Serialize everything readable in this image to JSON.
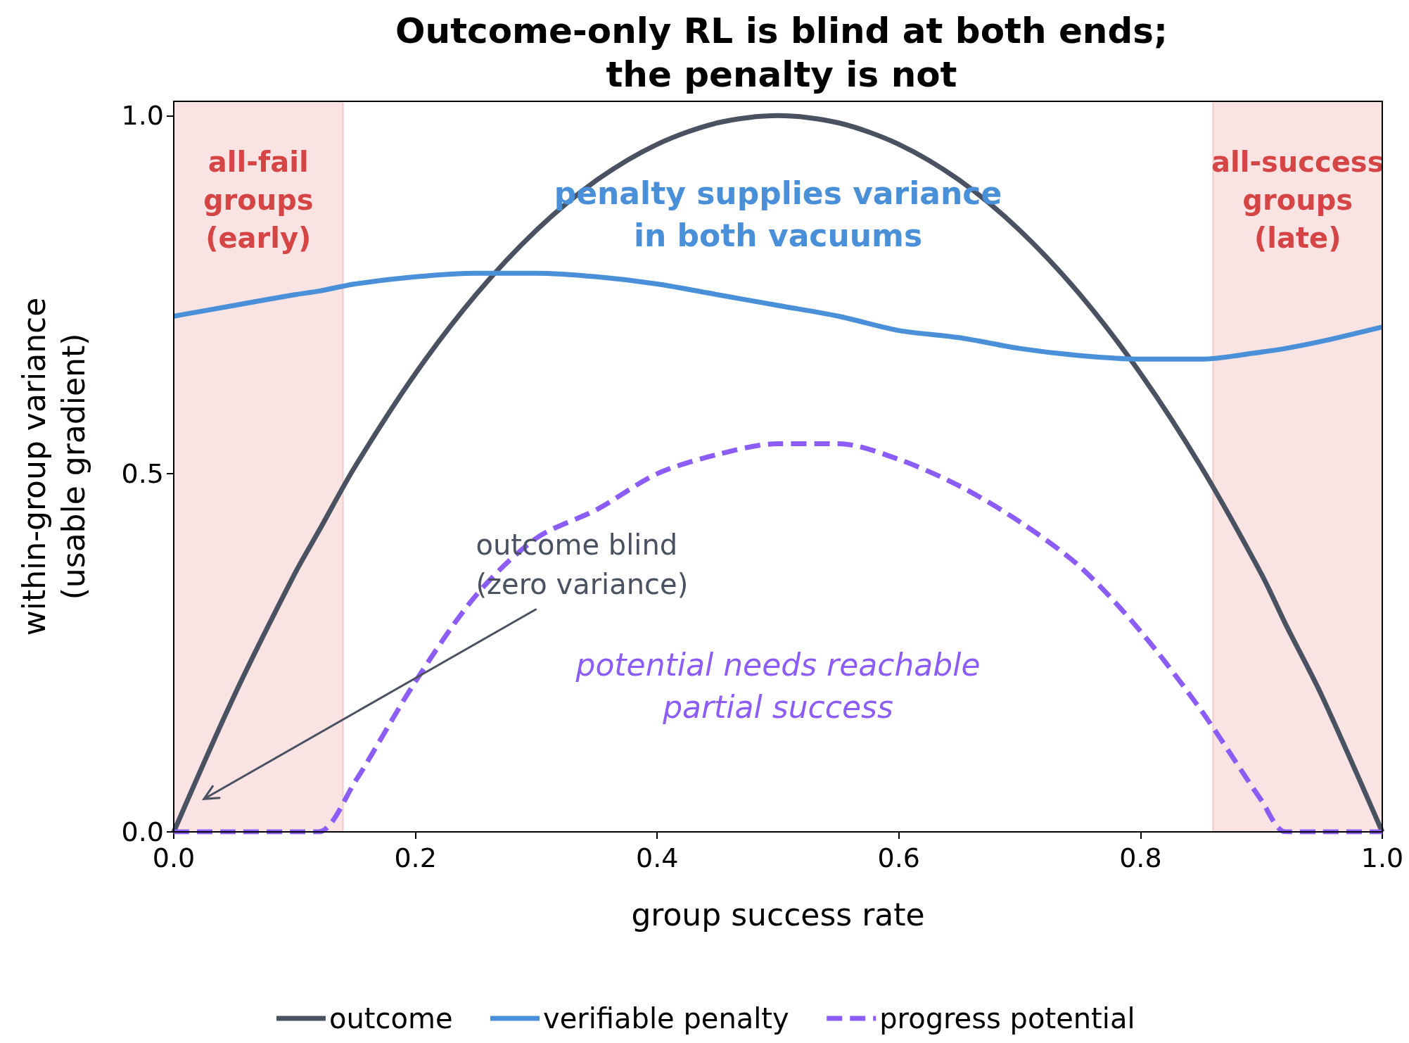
{
  "chart_data": {
    "type": "line",
    "title": "Outcome-only RL is blind at both ends;\nthe penalty is not",
    "xlabel": "group success rate",
    "ylabel": "within-group variance\n(usable gradient)",
    "x": [
      0,
      0.05,
      0.1,
      0.12,
      0.15,
      0.2,
      0.25,
      0.3,
      0.35,
      0.4,
      0.45,
      0.5,
      0.55,
      0.6,
      0.65,
      0.7,
      0.75,
      0.8,
      0.85,
      0.9,
      0.92,
      0.95,
      1.0
    ],
    "series": [
      {
        "name": "outcome",
        "color": "#4a5160",
        "line_style": "solid",
        "values": [
          0,
          0.19,
          0.36,
          0.42,
          0.51,
          0.64,
          0.75,
          0.84,
          0.91,
          0.96,
          0.99,
          1.0,
          0.99,
          0.96,
          0.91,
          0.84,
          0.75,
          0.64,
          0.51,
          0.36,
          0.29,
          0.19,
          0
        ]
      },
      {
        "name": "verifiable penalty",
        "color": "#4a90d9",
        "line_style": "solid",
        "values": [
          0.72,
          0.735,
          0.75,
          0.755,
          0.765,
          0.775,
          0.78,
          0.78,
          0.775,
          0.765,
          0.75,
          0.735,
          0.72,
          0.7,
          0.69,
          0.675,
          0.665,
          0.66,
          0.66,
          0.67,
          0.675,
          0.685,
          0.705
        ]
      },
      {
        "name": "progress potential",
        "color": "#8b5cf6",
        "line_style": "dashed",
        "values": [
          0,
          0,
          0,
          0,
          0.07,
          0.21,
          0.33,
          0.41,
          0.45,
          0.5,
          0.527,
          0.542,
          0.542,
          0.52,
          0.483,
          0.433,
          0.37,
          0.28,
          0.17,
          0.044,
          0,
          0,
          0
        ]
      }
    ],
    "xlim": [
      0,
      1
    ],
    "xticks": [
      {
        "value": 0,
        "label": "0.0"
      },
      0.2,
      0.4,
      0.6,
      0.8,
      {
        "value": 1,
        "label": "1.0"
      }
    ],
    "ylim": [
      0,
      1.02
    ],
    "yticks": [
      {
        "value": 0,
        "label": "0.0"
      },
      0.5,
      {
        "value": 1,
        "label": "1.0"
      }
    ],
    "bands": [
      {
        "axis": "x",
        "from": 0,
        "to": 0.14,
        "label": "all-fail\ngroups\n(early)",
        "color": "#f9e3e3"
      },
      {
        "axis": "x",
        "from": 0.86,
        "to": 1.0,
        "label": "all-success\ngroups\n(late)",
        "color": "#f9e3e3"
      }
    ],
    "annotations": [
      "outcome blind\n(zero variance)",
      "penalty supplies variance\nin both vacuums",
      "potential needs reachable\npartial success"
    ],
    "grid": false,
    "legend": "bottom",
    "marker": "none"
  }
}
